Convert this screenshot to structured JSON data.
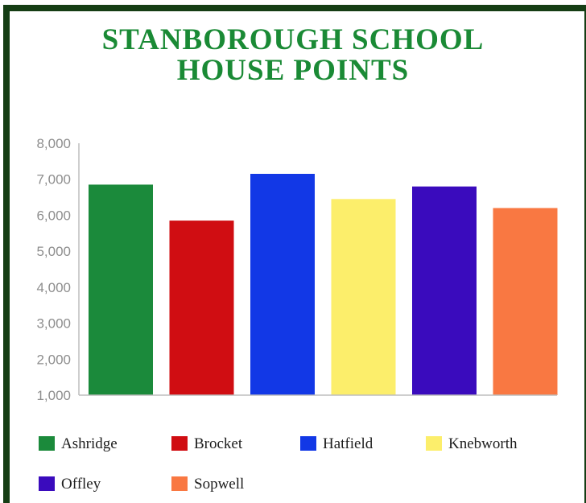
{
  "title_line1": "STANBOROUGH SCHOOL",
  "title_line2": "HOUSE POINTS",
  "colors": {
    "title": "#1a8a35",
    "frame": "#153d14",
    "axis": "#bdbdbd",
    "tick_text": "#8e8e8e"
  },
  "chart_data": {
    "type": "bar",
    "title": "STANBOROUGH SCHOOL HOUSE POINTS",
    "categories": [
      "Ashridge",
      "Brocket",
      "Hatfield",
      "Knebworth",
      "Offley",
      "Sopwell"
    ],
    "values": [
      6850,
      5850,
      7150,
      6450,
      6800,
      6200
    ],
    "colors": [
      "#1b8a3b",
      "#d00d12",
      "#1238e6",
      "#fcee6b",
      "#3a0bbd",
      "#f97842"
    ],
    "ylim": [
      1000,
      8000
    ],
    "yticks": [
      1000,
      2000,
      3000,
      4000,
      5000,
      6000,
      7000,
      8000
    ],
    "ytick_labels": [
      "1,000",
      "2,000",
      "3,000",
      "4,000",
      "5,000",
      "6,000",
      "7,000",
      "8,000"
    ],
    "xlabel": "",
    "ylabel": "",
    "grid": false,
    "legend_position": "bottom"
  }
}
